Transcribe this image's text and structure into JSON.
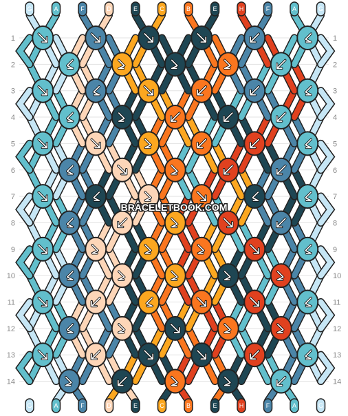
{
  "watermark": "BRACELETBOOK.COM",
  "colors": {
    "G": "#c6e6f5",
    "A": "#62bfcc",
    "F": "#4b85a8",
    "D": "#fdd6b8",
    "E": "#1e4653",
    "C": "#fca720",
    "B": "#fa761f",
    "H": "#e0411f"
  },
  "top_strings": [
    "G",
    "A",
    "F",
    "D",
    "E",
    "C",
    "B",
    "E",
    "H",
    "F",
    "A",
    "G"
  ],
  "bottom_strings": [
    "G",
    "A",
    "F",
    "D",
    "E",
    "C",
    "B",
    "E",
    "H",
    "F",
    "A",
    "G"
  ],
  "row_numbers": [
    "1",
    "2",
    "3",
    "4",
    "5",
    "6",
    "7",
    "8",
    "9",
    "10",
    "11",
    "12",
    "13",
    "14"
  ],
  "rows": [
    [
      [
        "A",
        "f"
      ],
      [
        "F",
        "f"
      ],
      [
        "E",
        "f"
      ],
      [
        "E",
        "f"
      ],
      [
        "F",
        "b"
      ],
      [
        "A",
        "bf"
      ]
    ],
    [
      [
        "A",
        "bf"
      ],
      [
        "C",
        "fb"
      ],
      [
        "E",
        "fb"
      ],
      [
        "B",
        "fb"
      ],
      [
        "A",
        "b"
      ]
    ],
    [
      [
        "A",
        "f"
      ],
      [
        "F",
        "bf"
      ],
      [
        "C",
        "f"
      ],
      [
        "B",
        "b"
      ],
      [
        "F",
        "b"
      ],
      [
        "A",
        "bf"
      ]
    ],
    [
      [
        "A",
        "bf"
      ],
      [
        "E",
        "fb"
      ],
      [
        "B",
        "b"
      ],
      [
        "E",
        "b"
      ],
      [
        "A",
        "b"
      ]
    ],
    [
      [
        "A",
        "f"
      ],
      [
        "D",
        "f"
      ],
      [
        "C",
        "fb"
      ],
      [
        "B",
        "b"
      ],
      [
        "H",
        "b"
      ],
      [
        "A",
        "bf"
      ]
    ],
    [
      [
        "F",
        "bf"
      ],
      [
        "D",
        "f"
      ],
      [
        "B",
        "fb"
      ],
      [
        "H",
        "b"
      ],
      [
        "F",
        "b"
      ]
    ],
    [
      [
        "A",
        "f"
      ],
      [
        "E",
        "bf"
      ],
      [
        "D",
        "fb"
      ],
      [
        "B",
        "f"
      ],
      [
        "E",
        "bf"
      ],
      [
        "A",
        "bf"
      ]
    ],
    [
      [
        "F",
        "bf"
      ],
      [
        "D",
        "b"
      ],
      [
        "C",
        "fb"
      ],
      [
        "H",
        "f"
      ],
      [
        "F",
        "b"
      ]
    ],
    [
      [
        "A",
        "f"
      ],
      [
        "D",
        "fb"
      ],
      [
        "C",
        "fb"
      ],
      [
        "B",
        "fb"
      ],
      [
        "H",
        "f"
      ],
      [
        "A",
        "bf"
      ]
    ],
    [
      [
        "F",
        "bf"
      ],
      [
        "D",
        "fb"
      ],
      [
        "C",
        "fb"
      ],
      [
        "E",
        "fb"
      ],
      [
        "H",
        "fb"
      ]
    ],
    [
      [
        "A",
        "f"
      ],
      [
        "D",
        "b"
      ],
      [
        "C",
        "bf"
      ],
      [
        "B",
        "f"
      ],
      [
        "H",
        "f"
      ],
      [
        "A",
        "bf"
      ]
    ],
    [
      [
        "F",
        "bf"
      ],
      [
        "D",
        "fb"
      ],
      [
        "E",
        "f"
      ],
      [
        "B",
        "fb"
      ],
      [
        "H",
        "fb"
      ]
    ],
    [
      [
        "A",
        "f"
      ],
      [
        "D",
        "b"
      ],
      [
        "E",
        "f"
      ],
      [
        "E",
        "f"
      ],
      [
        "H",
        "b"
      ],
      [
        "A",
        "bf"
      ]
    ],
    [
      [
        "F",
        "fb"
      ],
      [
        "E",
        "b"
      ],
      [
        "B",
        "fb"
      ],
      [
        "E",
        "fb"
      ],
      [
        "A",
        "b"
      ]
    ]
  ]
}
